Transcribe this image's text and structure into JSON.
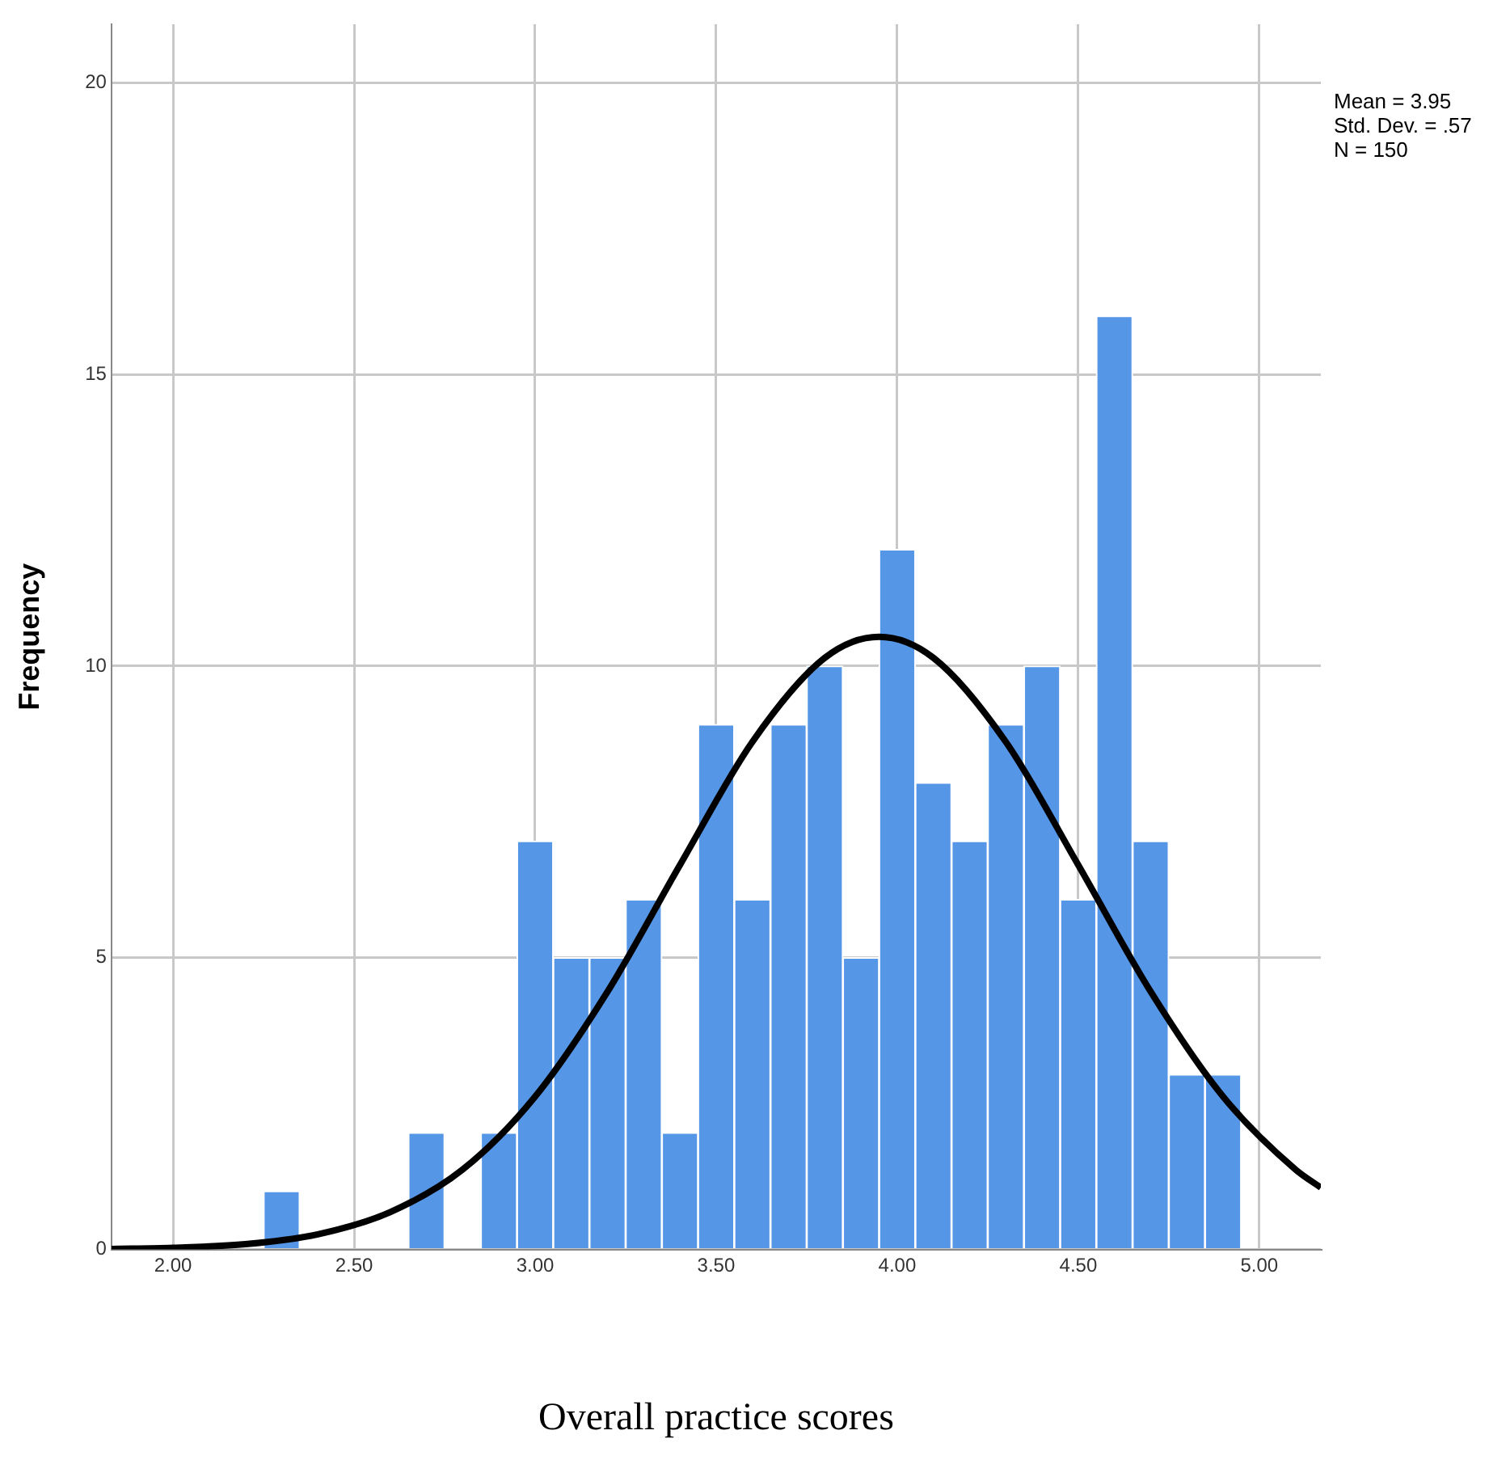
{
  "chart_data": {
    "type": "histogram",
    "xlabel": "Overall practice scores",
    "ylabel": "Frequency",
    "bins": [
      2.25,
      2.35,
      2.45,
      2.55,
      2.65,
      2.75,
      2.85,
      2.95,
      3.05,
      3.15,
      3.25,
      3.35,
      3.45,
      3.55,
      3.65,
      3.75,
      3.85,
      3.95,
      4.05,
      4.15,
      4.25,
      4.35,
      4.45,
      4.55,
      4.65,
      4.75,
      4.85,
      4.95
    ],
    "values": [
      1,
      0,
      0,
      0,
      2,
      0,
      2,
      7,
      5,
      5,
      6,
      2,
      9,
      6,
      9,
      10,
      5,
      12,
      8,
      7,
      9,
      10,
      6,
      16,
      7,
      3,
      3
    ],
    "color": "#5596e6",
    "series": [
      {
        "type": "line",
        "color": "#000000",
        "x": [
          1.83,
          2.0,
          2.2,
          2.4,
          2.6,
          2.8,
          3.0,
          3.2,
          3.4,
          3.6,
          3.8,
          3.95,
          4.1,
          4.3,
          4.5,
          4.7,
          4.9,
          5.1,
          5.17
        ],
        "values": [
          0.01,
          0.03,
          0.09,
          0.26,
          0.64,
          1.37,
          2.62,
          4.42,
          6.59,
          8.7,
          10.14,
          10.5,
          10.14,
          8.7,
          6.59,
          4.42,
          2.62,
          1.37,
          1.06
        ]
      }
    ],
    "xlim": [
      1.83,
      5.17
    ],
    "ylim": [
      0,
      21
    ],
    "xticks": [
      {
        "value": 2,
        "label": "2.00"
      },
      {
        "value": 2.5,
        "label": "2.50"
      },
      {
        "value": 3,
        "label": "3.00"
      },
      {
        "value": 3.5,
        "label": "3.50"
      },
      {
        "value": 4,
        "label": "4.00"
      },
      {
        "value": 4.5,
        "label": "4.50"
      },
      {
        "value": 5,
        "label": "5.00"
      }
    ],
    "yticks": [
      0,
      5,
      10,
      15,
      20
    ],
    "grid": true,
    "annotations": [
      "Mean = 3.95",
      "Std. Dev. = .57",
      "N = 150"
    ]
  }
}
